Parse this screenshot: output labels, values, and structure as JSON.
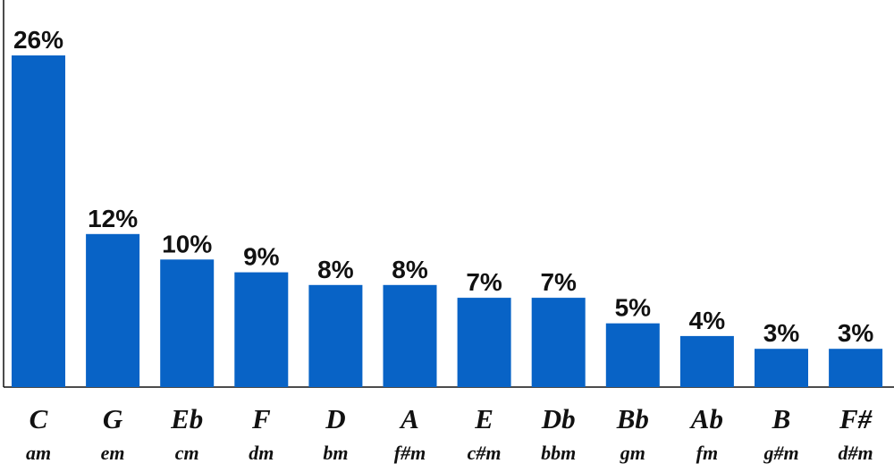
{
  "chart_data": {
    "type": "bar",
    "categories": [
      "C",
      "G",
      "Eb",
      "F",
      "D",
      "A",
      "E",
      "Db",
      "Bb",
      "Ab",
      "B",
      "F#"
    ],
    "sublabels": [
      "am",
      "em",
      "cm",
      "dm",
      "bm",
      "f#m",
      "c#m",
      "bbm",
      "gm",
      "fm",
      "g#m",
      "d#m"
    ],
    "values": [
      26,
      12,
      10,
      9,
      8,
      8,
      7,
      7,
      5,
      4,
      3,
      3
    ],
    "value_labels": [
      "26%",
      "12%",
      "10%",
      "9%",
      "8%",
      "8%",
      "7%",
      "7%",
      "5%",
      "4%",
      "3%",
      "3%"
    ],
    "title": "",
    "xlabel": "",
    "ylabel": "",
    "ylim": [
      0,
      26
    ],
    "grid": false,
    "legend": "none",
    "bar_color": "#0863c6",
    "axis_color": "#111111"
  }
}
